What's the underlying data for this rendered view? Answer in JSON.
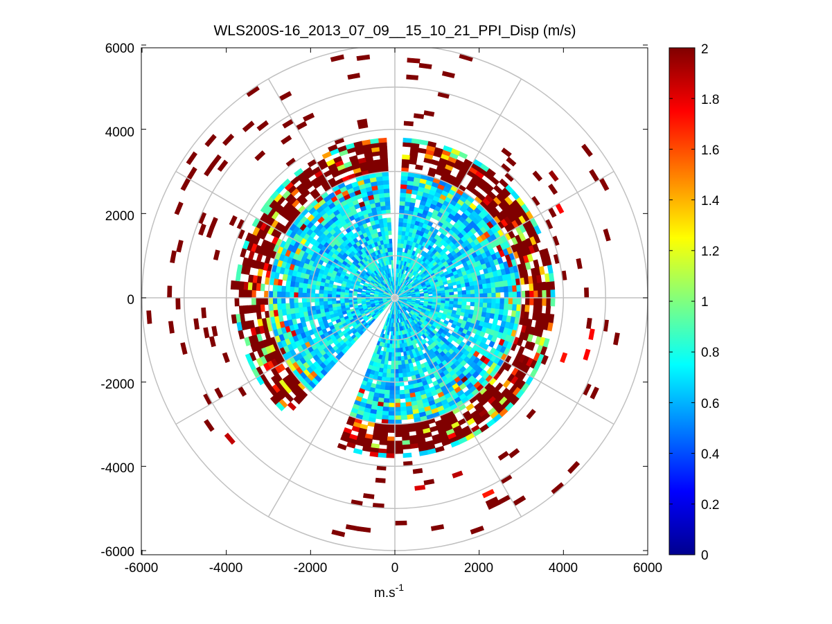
{
  "chart_data": {
    "type": "heatmap",
    "subtype": "polar-ppi",
    "title": "WLS200S-16_2013_07_09__15_10_21_PPI_Disp (m/s)",
    "xlabel": "m.s",
    "xlabel_superscript": "-1",
    "ylabel": "",
    "xlim": [
      -6000,
      6000
    ],
    "ylim": [
      -6000,
      6000
    ],
    "x_ticks": [
      "-6000",
      "-4000",
      "-2000",
      "0",
      "2000",
      "4000",
      "6000"
    ],
    "y_ticks": [
      "6000",
      "4000",
      "2000",
      "0",
      "-2000",
      "-4000",
      "-6000"
    ],
    "polar_grid_radii": [
      1000,
      2000,
      3000,
      4000,
      5000,
      6000
    ],
    "polar_spoke_angles_deg": [
      0,
      30,
      60,
      90,
      120,
      150,
      180,
      210,
      240,
      270,
      300,
      330
    ],
    "colorbar": {
      "min": 0,
      "max": 2,
      "colormap": "jet",
      "ticks": [
        "0",
        "0.2",
        "0.4",
        "0.6",
        "0.8",
        "1",
        "1.2",
        "1.4",
        "1.6",
        "1.8",
        "2"
      ]
    },
    "field_description": {
      "core_radius_m": 3000,
      "core_value_typical": 0.7,
      "ring_radius_m": [
        3000,
        3800
      ],
      "ring_value_typical": 2.0,
      "sparse_outer_radius_m": [
        4000,
        6000
      ],
      "sparse_outer_value": 2.0,
      "gap_sectors_deg": [
        [
          86,
          92
        ],
        [
          226,
          246
        ]
      ]
    }
  }
}
